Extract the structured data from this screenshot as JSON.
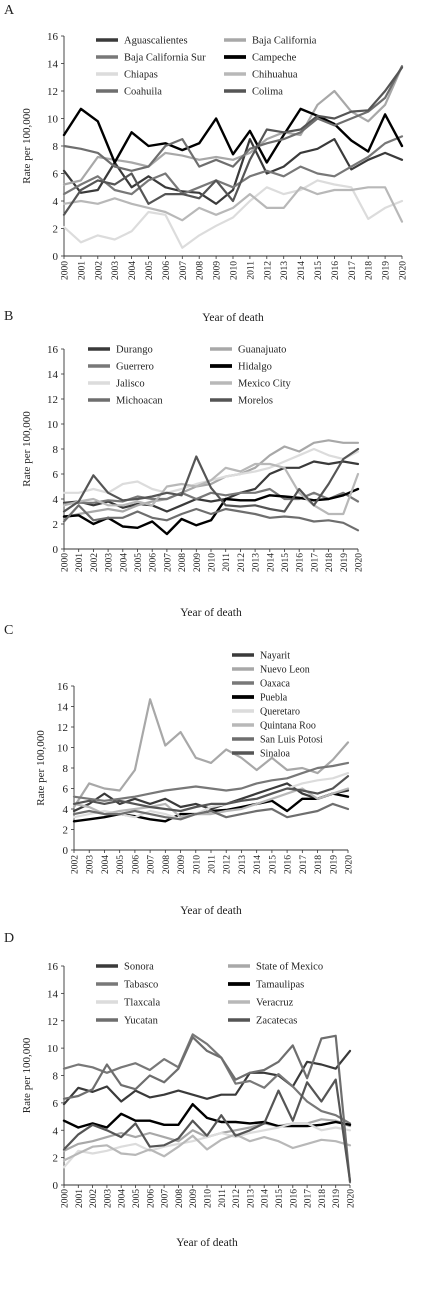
{
  "chart_data": [
    {
      "type": "line",
      "panel_label": "A",
      "xlabel": "Year of death",
      "ylabel": "Rate per 100,000",
      "ylim": [
        0,
        16
      ],
      "yticks": [
        "0",
        "2",
        "4",
        "6",
        "8",
        "10",
        "12",
        "14",
        "16"
      ],
      "x": [
        "2000",
        "2001",
        "2002",
        "2003",
        "2004",
        "2005",
        "2006",
        "2007",
        "2008",
        "2009",
        "2010",
        "2011",
        "2012",
        "2013",
        "2014",
        "2015",
        "2016",
        "2017",
        "2018",
        "2019",
        "2020"
      ],
      "legend_position": "top",
      "series": [
        {
          "name": "Aguascalientes",
          "color": "#3a3a3a",
          "width": 2.2,
          "values": [
            6.2,
            4.6,
            4.8,
            6.8,
            5.0,
            5.8,
            5.0,
            4.7,
            4.6,
            3.8,
            4.8,
            8.5,
            6.0,
            6.5,
            7.5,
            7.8,
            8.5,
            6.3,
            7.0,
            7.5,
            7.0
          ]
        },
        {
          "name": "Baja California",
          "color": "#a8a8a8",
          "width": 2.2,
          "values": [
            5.2,
            5.5,
            7.2,
            7.0,
            6.8,
            6.5,
            7.5,
            7.3,
            7.0,
            7.2,
            7.0,
            7.5,
            8.5,
            9.0,
            8.8,
            11.0,
            12.0,
            10.5,
            9.8,
            11.0,
            13.8
          ]
        },
        {
          "name": "Baja California Sur",
          "color": "#787878",
          "width": 2.2,
          "values": [
            4.5,
            5.2,
            5.8,
            4.8,
            4.5,
            5.5,
            6.0,
            4.5,
            5.0,
            5.5,
            5.0,
            5.8,
            6.2,
            5.8,
            6.5,
            6.0,
            5.8,
            6.5,
            7.2,
            8.2,
            8.7
          ]
        },
        {
          "name": "Campeche",
          "color": "#000000",
          "width": 2.4,
          "values": [
            8.8,
            10.7,
            9.8,
            6.8,
            9.0,
            8.0,
            8.2,
            7.7,
            8.2,
            10.0,
            7.4,
            9.1,
            6.8,
            8.8,
            10.7,
            10.2,
            9.6,
            8.4,
            7.6,
            10.3,
            8.0
          ]
        },
        {
          "name": "Chiapas",
          "color": "#dcdcdc",
          "width": 2.2,
          "values": [
            2.1,
            1.0,
            1.5,
            1.2,
            1.8,
            3.2,
            3.0,
            0.6,
            1.5,
            2.2,
            2.8,
            4.0,
            5.0,
            4.5,
            4.8,
            5.5,
            5.2,
            5.0,
            2.7,
            3.5,
            4.0
          ]
        },
        {
          "name": "Chihuahua",
          "color": "#b8b8b8",
          "width": 2.2,
          "values": [
            3.8,
            4.0,
            3.8,
            4.2,
            3.8,
            3.5,
            3.2,
            2.6,
            3.5,
            3.0,
            3.5,
            4.5,
            3.5,
            3.5,
            5.0,
            4.5,
            4.8,
            4.8,
            5.0,
            5.0,
            2.5
          ]
        },
        {
          "name": "Coahuila",
          "color": "#6e6e6e",
          "width": 2.2,
          "values": [
            8.0,
            7.8,
            7.5,
            6.5,
            6.2,
            6.5,
            8.0,
            8.5,
            6.5,
            7.0,
            6.5,
            7.8,
            8.2,
            8.5,
            9.0,
            10.0,
            9.5,
            10.0,
            10.5,
            11.5,
            13.8
          ]
        },
        {
          "name": "Colima",
          "color": "#555555",
          "width": 2.2,
          "values": [
            3.0,
            4.8,
            5.5,
            5.2,
            6.0,
            3.8,
            4.5,
            4.5,
            4.2,
            5.5,
            4.0,
            7.0,
            9.2,
            9.0,
            9.2,
            10.2,
            10.0,
            10.5,
            10.6,
            12.0,
            13.7
          ]
        }
      ]
    },
    {
      "type": "line",
      "panel_label": "B",
      "xlabel": "Year of death",
      "ylabel": "Rate per 100,000",
      "ylim": [
        0,
        16
      ],
      "yticks": [
        "0",
        "2",
        "4",
        "6",
        "8",
        "10",
        "12",
        "14",
        "16"
      ],
      "x": [
        "2000",
        "2001",
        "2002",
        "2003",
        "2004",
        "2005",
        "2006",
        "2007",
        "2008",
        "2009",
        "2010",
        "2011",
        "2012",
        "2013",
        "2014",
        "2015",
        "2016",
        "2017",
        "2018",
        "2019",
        "2020"
      ],
      "legend_position": "top",
      "series": [
        {
          "name": "Durango",
          "color": "#3a3a3a",
          "width": 2.2,
          "values": [
            3.7,
            3.8,
            3.5,
            3.8,
            3.3,
            3.6,
            3.5,
            3.0,
            3.5,
            4.0,
            3.8,
            4.0,
            4.5,
            4.8,
            6.0,
            6.5,
            6.5,
            7.0,
            6.8,
            7.0,
            6.8
          ]
        },
        {
          "name": "Guanajuato",
          "color": "#a8a8a8",
          "width": 2.2,
          "values": [
            2.5,
            2.8,
            3.0,
            3.2,
            3.0,
            3.5,
            3.8,
            4.0,
            4.5,
            5.0,
            5.2,
            5.8,
            6.0,
            6.5,
            7.5,
            8.2,
            7.8,
            8.5,
            8.7,
            8.5,
            8.5
          ]
        },
        {
          "name": "Guerrero",
          "color": "#787878",
          "width": 2.2,
          "values": [
            3.6,
            3.7,
            3.7,
            3.9,
            3.8,
            4.2,
            4.0,
            4.0,
            4.5,
            4.0,
            4.5,
            4.3,
            4.5,
            4.5,
            4.8,
            4.0,
            4.0,
            4.5,
            4.0,
            4.5,
            3.8
          ]
        },
        {
          "name": "Hidalgo",
          "color": "#000000",
          "width": 2.4,
          "values": [
            2.6,
            2.7,
            2.0,
            2.5,
            1.8,
            1.7,
            2.2,
            1.2,
            2.4,
            1.9,
            2.3,
            4.0,
            3.9,
            3.9,
            4.3,
            4.2,
            4.1,
            3.9,
            4.0,
            4.3,
            4.8
          ]
        },
        {
          "name": "Jalisco",
          "color": "#dcdcdc",
          "width": 2.2,
          "values": [
            4.5,
            4.5,
            4.8,
            4.5,
            5.2,
            5.4,
            4.8,
            4.5,
            4.8,
            5.2,
            5.5,
            5.8,
            6.0,
            6.2,
            6.5,
            7.0,
            7.5,
            8.0,
            7.5,
            7.2,
            7.8
          ]
        },
        {
          "name": "Mexico City",
          "color": "#b8b8b8",
          "width": 2.2,
          "values": [
            3.5,
            3.8,
            4.0,
            3.5,
            3.5,
            3.8,
            3.5,
            5.0,
            5.2,
            5.0,
            5.5,
            6.5,
            6.2,
            6.8,
            6.8,
            6.5,
            4.5,
            3.5,
            2.8,
            2.8,
            6.0
          ]
        },
        {
          "name": "Michoacan",
          "color": "#6e6e6e",
          "width": 2.2,
          "values": [
            2.2,
            3.5,
            2.3,
            2.5,
            2.5,
            3.0,
            2.5,
            2.3,
            2.8,
            3.2,
            2.8,
            3.2,
            3.0,
            2.8,
            2.5,
            2.6,
            2.5,
            2.2,
            2.3,
            2.1,
            1.5
          ]
        },
        {
          "name": "Morelos",
          "color": "#555555",
          "width": 2.2,
          "values": [
            3.0,
            3.8,
            5.9,
            4.5,
            3.9,
            4.0,
            4.2,
            4.5,
            4.3,
            7.4,
            4.9,
            3.5,
            3.4,
            3.5,
            3.2,
            3.0,
            4.8,
            3.5,
            5.2,
            7.2,
            8.0
          ]
        }
      ]
    },
    {
      "type": "line",
      "panel_label": "C",
      "xlabel": "Year of death",
      "ylabel": "Rate per 100,000",
      "ylim": [
        0,
        16
      ],
      "yticks": [
        "0",
        "2",
        "4",
        "6",
        "8",
        "10",
        "12",
        "14",
        "16"
      ],
      "x": [
        "2002",
        "2003",
        "2004",
        "2005",
        "2006",
        "2007",
        "2008",
        "2009",
        "2010",
        "2011",
        "2012",
        "2013",
        "2014",
        "2015",
        "2016",
        "2017",
        "2018",
        "2019",
        "2020"
      ],
      "legend_position": "top-right",
      "series": [
        {
          "name": "Nayarit",
          "color": "#3a3a3a",
          "width": 2.2,
          "values": [
            3.8,
            4.5,
            5.5,
            4.5,
            5.0,
            4.5,
            5.0,
            4.2,
            4.5,
            4.0,
            4.5,
            5.0,
            5.5,
            6.0,
            6.5,
            5.5,
            5.0,
            5.5,
            5.8
          ]
        },
        {
          "name": "Nuevo Leon",
          "color": "#a8a8a8",
          "width": 2.2,
          "values": [
            4.2,
            6.5,
            6.0,
            5.8,
            7.8,
            14.7,
            10.2,
            11.5,
            9.0,
            8.5,
            9.8,
            9.0,
            7.8,
            9.0,
            7.8,
            8.0,
            7.5,
            8.8,
            10.5
          ]
        },
        {
          "name": "Oaxaca",
          "color": "#787878",
          "width": 2.2,
          "values": [
            5.2,
            5.0,
            4.8,
            5.0,
            5.2,
            5.5,
            5.8,
            6.0,
            6.2,
            6.0,
            5.8,
            6.0,
            6.5,
            6.8,
            7.0,
            7.5,
            8.0,
            8.2,
            8.5
          ]
        },
        {
          "name": "Puebla",
          "color": "#000000",
          "width": 2.4,
          "values": [
            2.8,
            3.0,
            3.2,
            3.5,
            3.3,
            3.0,
            2.8,
            3.5,
            3.5,
            3.8,
            3.9,
            4.2,
            4.5,
            4.8,
            3.8,
            5.0,
            5.0,
            5.5,
            5.2
          ]
        },
        {
          "name": "Queretaro",
          "color": "#dcdcdc",
          "width": 2.2,
          "values": [
            3.2,
            3.5,
            3.8,
            3.5,
            3.2,
            3.8,
            3.5,
            3.0,
            3.5,
            4.2,
            4.5,
            4.8,
            5.0,
            5.5,
            6.0,
            6.5,
            6.8,
            7.0,
            7.5
          ]
        },
        {
          "name": "Quintana Roo",
          "color": "#b8b8b8",
          "width": 2.2,
          "values": [
            4.5,
            4.2,
            3.5,
            3.8,
            4.0,
            4.2,
            4.5,
            3.2,
            3.5,
            3.5,
            3.8,
            4.0,
            4.5,
            5.0,
            5.5,
            6.0,
            5.0,
            5.5,
            6.0
          ]
        },
        {
          "name": "San Luis Potosi",
          "color": "#6e6e6e",
          "width": 2.2,
          "values": [
            3.5,
            3.8,
            3.5,
            3.5,
            3.8,
            3.5,
            3.2,
            3.0,
            3.5,
            3.8,
            3.2,
            3.5,
            3.8,
            4.0,
            3.2,
            3.5,
            3.8,
            4.5,
            4.0
          ]
        },
        {
          "name": "Sinaloa",
          "color": "#555555",
          "width": 2.2,
          "values": [
            4.5,
            4.8,
            4.5,
            4.8,
            4.5,
            4.2,
            4.0,
            3.8,
            4.2,
            4.5,
            4.5,
            4.8,
            5.0,
            5.5,
            6.0,
            5.8,
            5.5,
            6.0,
            7.2
          ]
        }
      ]
    },
    {
      "type": "line",
      "panel_label": "D",
      "xlabel": "Year of death",
      "ylabel": "Rate per 100,000",
      "ylim": [
        0,
        16
      ],
      "yticks": [
        "0",
        "2",
        "4",
        "6",
        "8",
        "10",
        "12",
        "14",
        "16"
      ],
      "x": [
        "2000",
        "2001",
        "2002",
        "2003",
        "2004",
        "2005",
        "2006",
        "2007",
        "2008",
        "2009",
        "2010",
        "2011",
        "2012",
        "2013",
        "2014",
        "2015",
        "2016",
        "2017",
        "2018",
        "2019",
        "2020"
      ],
      "legend_position": "top",
      "series": [
        {
          "name": "Sonora",
          "color": "#3a3a3a",
          "width": 2.2,
          "values": [
            5.9,
            7.1,
            6.8,
            7.2,
            6.1,
            6.9,
            6.4,
            6.6,
            6.9,
            6.6,
            6.3,
            6.6,
            6.6,
            8.2,
            8.2,
            8.0,
            7.2,
            9.0,
            8.8,
            8.5,
            9.8
          ]
        },
        {
          "name": "State of Mexico",
          "color": "#a8a8a8",
          "width": 2.2,
          "values": [
            2.5,
            3.0,
            3.2,
            3.5,
            3.8,
            3.5,
            3.8,
            3.5,
            3.2,
            4.0,
            3.5,
            3.8,
            4.0,
            4.2,
            4.5,
            4.3,
            4.5,
            4.5,
            4.8,
            4.7,
            4.3
          ]
        },
        {
          "name": "Tabasco",
          "color": "#787878",
          "width": 2.2,
          "values": [
            8.5,
            8.8,
            8.6,
            8.2,
            8.6,
            8.9,
            8.4,
            9.2,
            8.6,
            11.0,
            10.3,
            9.3,
            7.4,
            7.6,
            7.1,
            8.1,
            7.2,
            6.1,
            5.4,
            5.1,
            4.5
          ]
        },
        {
          "name": "Tamaulipas",
          "color": "#000000",
          "width": 2.4,
          "values": [
            4.7,
            4.2,
            4.5,
            4.2,
            5.2,
            4.7,
            4.7,
            4.4,
            4.4,
            5.9,
            4.9,
            4.6,
            4.6,
            4.5,
            4.6,
            4.3,
            4.3,
            4.3,
            4.4,
            4.6,
            4.4
          ]
        },
        {
          "name": "Tlaxcala",
          "color": "#dcdcdc",
          "width": 2.2,
          "values": [
            1.3,
            2.5,
            2.3,
            2.5,
            2.8,
            3.0,
            2.5,
            2.8,
            3.0,
            3.2,
            3.5,
            3.8,
            3.5,
            3.8,
            4.0,
            4.2,
            4.5,
            4.5,
            4.0,
            4.2,
            4.0
          ]
        },
        {
          "name": "Veracruz",
          "color": "#b8b8b8",
          "width": 2.2,
          "values": [
            1.8,
            2.3,
            2.8,
            2.9,
            2.3,
            2.2,
            2.6,
            2.1,
            2.8,
            3.6,
            2.6,
            3.3,
            3.7,
            3.2,
            3.5,
            3.2,
            2.7,
            3.0,
            3.3,
            3.2,
            2.9
          ]
        },
        {
          "name": "Yucatan",
          "color": "#6e6e6e",
          "width": 2.2,
          "values": [
            6.3,
            6.5,
            7.0,
            8.8,
            7.3,
            7.0,
            8.0,
            7.5,
            8.5,
            10.8,
            9.8,
            9.3,
            7.7,
            8.2,
            8.4,
            9.0,
            10.2,
            7.8,
            10.7,
            10.9,
            0.2
          ]
        },
        {
          "name": "Zacatecas",
          "color": "#555555",
          "width": 2.2,
          "values": [
            2.6,
            3.7,
            4.4,
            4.0,
            3.5,
            4.5,
            2.8,
            2.9,
            3.4,
            4.7,
            3.6,
            5.1,
            3.6,
            4.0,
            4.5,
            6.9,
            4.7,
            7.5,
            6.1,
            7.7,
            0.3
          ]
        }
      ]
    }
  ]
}
